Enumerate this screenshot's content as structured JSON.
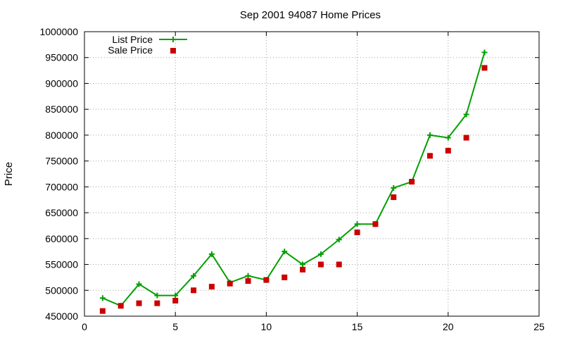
{
  "chart_data": {
    "type": "line",
    "title": "Sep 2001 94087 Home Prices",
    "xlabel": "",
    "ylabel": "Price",
    "xlim": [
      0,
      25
    ],
    "ylim": [
      450000,
      1000000
    ],
    "x_ticks": [
      "0",
      "5",
      "10",
      "15",
      "20",
      "25"
    ],
    "y_ticks": [
      "450000",
      "500000",
      "550000",
      "600000",
      "650000",
      "700000",
      "750000",
      "800000",
      "850000",
      "900000",
      "950000",
      "1000000"
    ],
    "grid": true,
    "legend_position": "top-left",
    "series": [
      {
        "name": "List Price",
        "style": "line+cross",
        "color": "#00a000",
        "x": [
          1,
          2,
          3,
          4,
          5,
          6,
          7,
          8,
          9,
          10,
          11,
          12,
          13,
          14,
          15,
          16,
          17,
          18,
          19,
          20,
          21,
          22
        ],
        "values": [
          485000,
          470000,
          512000,
          490000,
          490000,
          528000,
          570000,
          515000,
          528000,
          520000,
          575000,
          550000,
          570000,
          598000,
          628000,
          628000,
          698000,
          710000,
          800000,
          795000,
          840000,
          960000
        ]
      },
      {
        "name": "Sale Price",
        "style": "square",
        "color": "#cc0000",
        "x": [
          1,
          2,
          3,
          4,
          5,
          6,
          7,
          8,
          9,
          10,
          11,
          12,
          13,
          14,
          15,
          16,
          17,
          18,
          19,
          20,
          21,
          22
        ],
        "values": [
          460000,
          470000,
          475000,
          475000,
          480000,
          500000,
          507000,
          513000,
          518000,
          520000,
          525000,
          540000,
          550000,
          550000,
          612000,
          628000,
          680000,
          710000,
          760000,
          770000,
          795000,
          930000
        ]
      }
    ]
  }
}
